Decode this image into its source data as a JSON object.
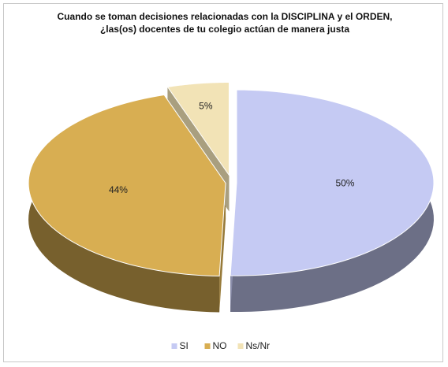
{
  "chart_data": {
    "type": "pie",
    "title": "Cuando se toman decisiones relacionadas con la DISCIPLINA y el ORDEN, ¿las(os) docentes de tu colegio actúan de manera justa",
    "categories": [
      "SI",
      "NO",
      "Ns/Nr"
    ],
    "values": [
      50,
      44,
      5
    ],
    "value_labels": [
      "50%",
      "44%",
      "5%"
    ],
    "colors": [
      "#c5caf3",
      "#d8ae52",
      "#f2e3b6"
    ],
    "legend": "bottom"
  }
}
